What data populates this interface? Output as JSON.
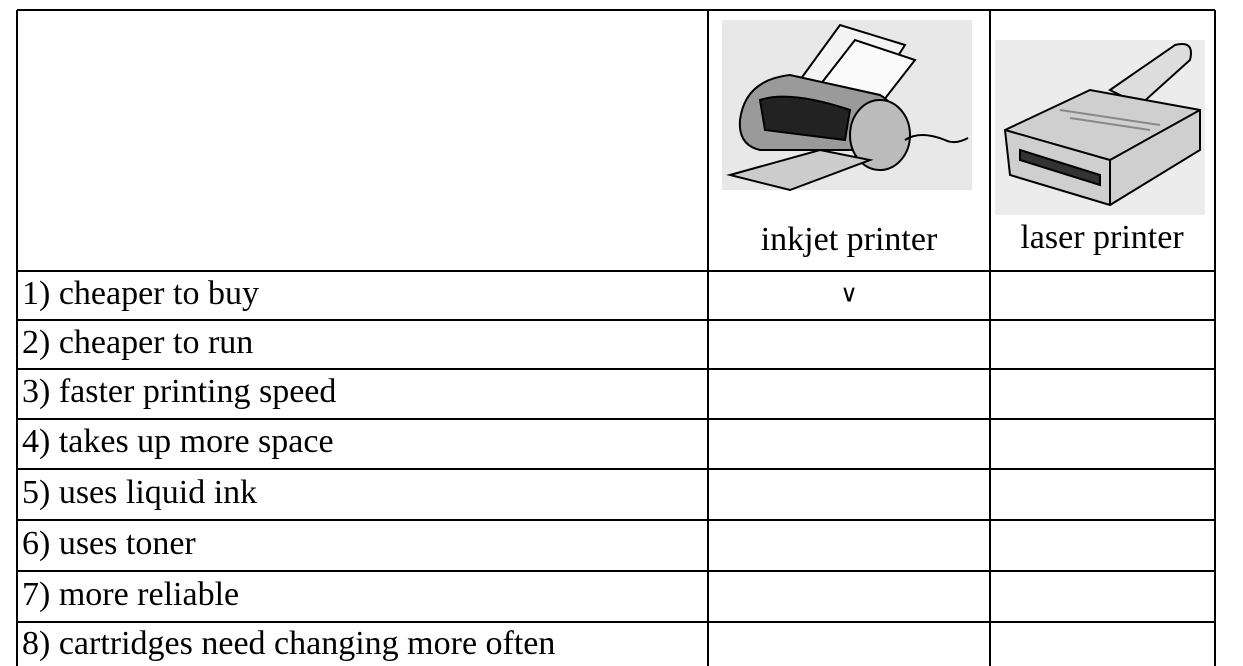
{
  "table": {
    "columns": [
      "inkjet printer",
      "laser printer"
    ],
    "rows": [
      {
        "label": "1) cheaper to buy",
        "inkjet": "∨"
      },
      {
        "label": "2) cheaper to run"
      },
      {
        "label": "3) faster printing speed"
      },
      {
        "label": "4) takes up more space"
      },
      {
        "label": "5) uses liquid ink"
      },
      {
        "label": "6) uses toner"
      },
      {
        "label": "7) more reliable"
      },
      {
        "label": "8) cartridges need changing more often"
      }
    ]
  }
}
